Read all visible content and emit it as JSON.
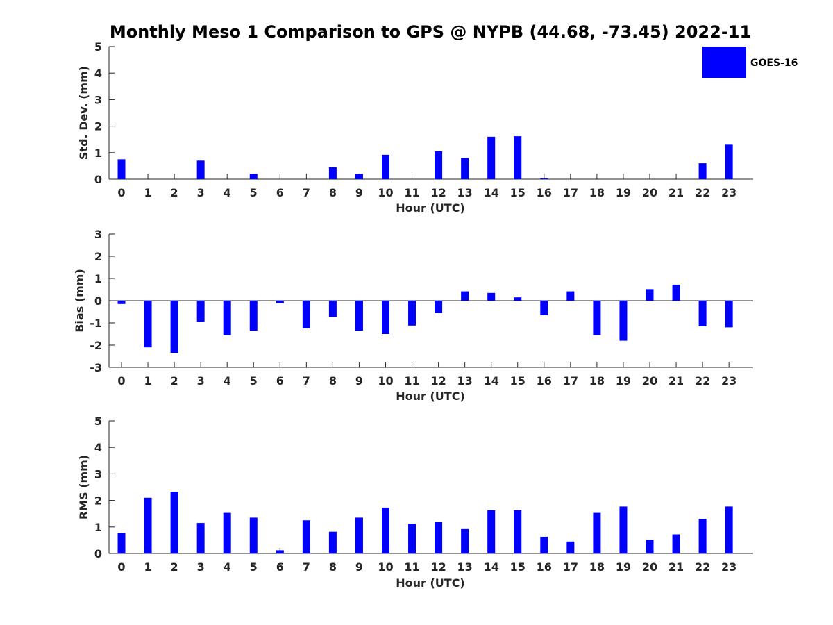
{
  "title": "Monthly Meso 1 Comparison to GPS @ NYPB (44.68, -73.45) 2022-11",
  "legend": {
    "label": "GOES-16",
    "color": "#0000ff",
    "placement": "top-right"
  },
  "chart_data": [
    {
      "type": "bar",
      "xlabel": "Hour (UTC)",
      "ylabel": "Std. Dev. (mm)",
      "ylim": [
        0,
        5
      ],
      "yticks": [
        0,
        1,
        2,
        3,
        4,
        5
      ],
      "categories": [
        "0",
        "1",
        "2",
        "3",
        "4",
        "5",
        "6",
        "7",
        "8",
        "9",
        "10",
        "11",
        "12",
        "13",
        "14",
        "15",
        "16",
        "17",
        "18",
        "19",
        "20",
        "21",
        "22",
        "23"
      ],
      "series": [
        {
          "name": "GOES-16",
          "values": [
            0.75,
            0,
            0,
            0.7,
            0,
            0.2,
            0,
            0,
            0.45,
            0.2,
            0.92,
            0,
            1.05,
            0.8,
            1.6,
            1.62,
            0.03,
            0,
            0,
            0,
            0,
            0,
            0.6,
            1.3
          ]
        }
      ]
    },
    {
      "type": "bar",
      "xlabel": "Hour (UTC)",
      "ylabel": "Bias (mm)",
      "ylim": [
        -3,
        3
      ],
      "yticks": [
        -3,
        -2,
        -1,
        0,
        1,
        2,
        3
      ],
      "categories": [
        "0",
        "1",
        "2",
        "3",
        "4",
        "5",
        "6",
        "7",
        "8",
        "9",
        "10",
        "11",
        "12",
        "13",
        "14",
        "15",
        "16",
        "17",
        "18",
        "19",
        "20",
        "21",
        "22",
        "23"
      ],
      "series": [
        {
          "name": "GOES-16",
          "values": [
            -0.15,
            -2.1,
            -2.35,
            -0.95,
            -1.55,
            -1.35,
            -0.12,
            -1.25,
            -0.72,
            -1.35,
            -1.5,
            -1.12,
            -0.55,
            0.42,
            0.35,
            0.15,
            -0.65,
            0.42,
            -1.55,
            -1.8,
            0.52,
            0.72,
            -1.15,
            -1.2
          ]
        }
      ]
    },
    {
      "type": "bar",
      "xlabel": "Hour (UTC)",
      "ylabel": "RMS (mm)",
      "ylim": [
        0,
        5
      ],
      "yticks": [
        0,
        1,
        2,
        3,
        4,
        5
      ],
      "categories": [
        "0",
        "1",
        "2",
        "3",
        "4",
        "5",
        "6",
        "7",
        "8",
        "9",
        "10",
        "11",
        "12",
        "13",
        "14",
        "15",
        "16",
        "17",
        "18",
        "19",
        "20",
        "21",
        "22",
        "23"
      ],
      "series": [
        {
          "name": "GOES-16",
          "values": [
            0.77,
            2.1,
            2.33,
            1.15,
            1.53,
            1.35,
            0.12,
            1.25,
            0.82,
            1.35,
            1.73,
            1.12,
            1.18,
            0.92,
            1.63,
            1.63,
            0.63,
            0.45,
            1.53,
            1.77,
            0.52,
            0.72,
            1.3,
            1.77
          ]
        }
      ]
    }
  ]
}
